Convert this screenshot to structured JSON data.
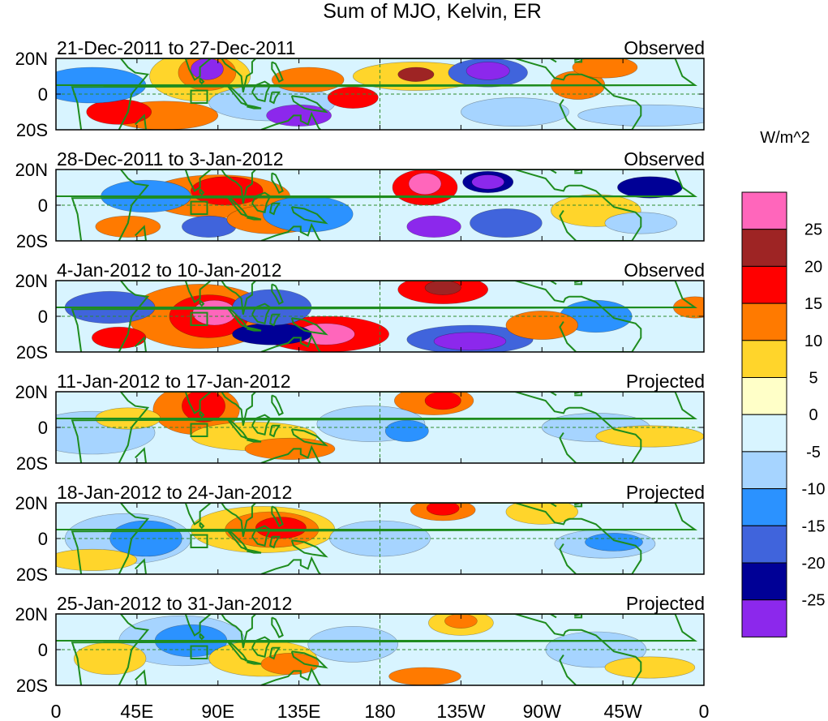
{
  "chart_data": {
    "type": "heatmap",
    "title": "Sum of MJO, Kelvin, ER",
    "panels": [
      {
        "date_range": "21-Dec-2011 to 27-Dec-2011",
        "status": "Observed"
      },
      {
        "date_range": "28-Dec-2011 to 3-Jan-2012",
        "status": "Observed"
      },
      {
        "date_range": "4-Jan-2012 to 10-Jan-2012",
        "status": "Observed"
      },
      {
        "date_range": "11-Jan-2012 to 17-Jan-2012",
        "status": "Projected"
      },
      {
        "date_range": "18-Jan-2012 to 24-Jan-2012",
        "status": "Projected"
      },
      {
        "date_range": "25-Jan-2012 to 31-Jan-2012",
        "status": "Projected"
      }
    ],
    "y_ticks": [
      "20N",
      "0",
      "20S"
    ],
    "x_ticks": [
      "0",
      "45E",
      "90E",
      "135E",
      "180",
      "135W",
      "90W",
      "45W",
      "0"
    ],
    "xlim": [
      0,
      360
    ],
    "ylim": [
      -20,
      20
    ],
    "colorbar": {
      "unit": "W/m^2",
      "labels": [
        "25",
        "20",
        "15",
        "10",
        "5",
        "0",
        "-5",
        "-10",
        "-15",
        "-20",
        "-25"
      ],
      "colors": [
        "#ff66bb",
        "#9e2424",
        "#ff0000",
        "#ff7a00",
        "#ffd52b",
        "#ffffc8",
        "#d8f4ff",
        "#a6d4ff",
        "#2b92ff",
        "#4064dc",
        "#000096",
        "#8c28ec"
      ]
    }
  }
}
